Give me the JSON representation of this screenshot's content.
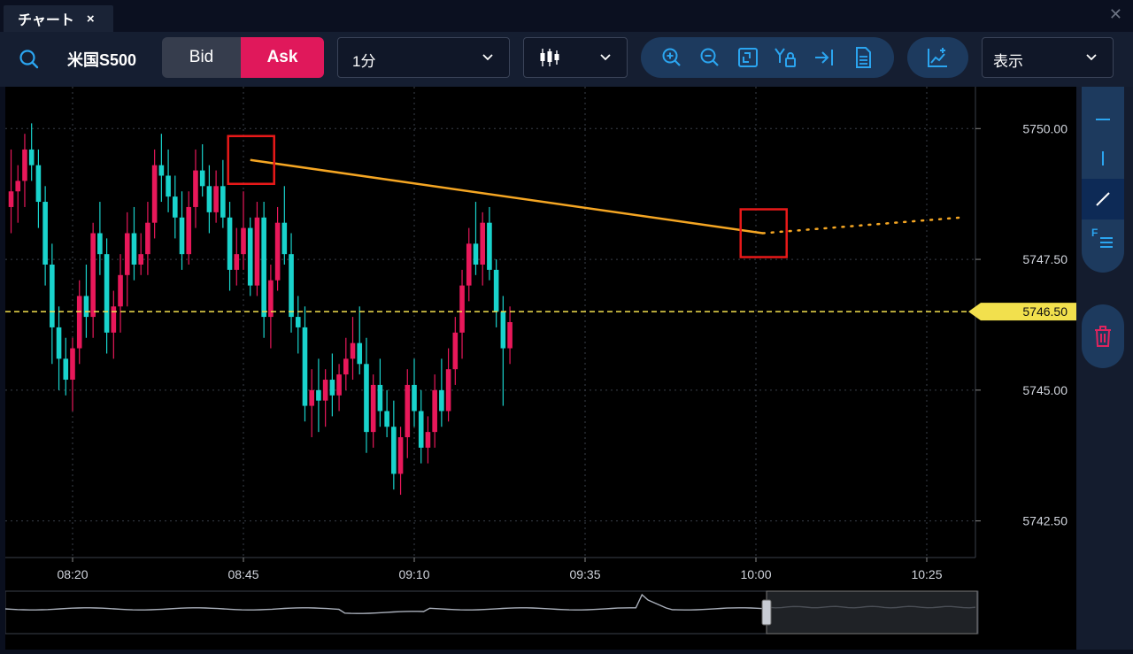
{
  "tab": {
    "title": "チャート",
    "close": "×"
  },
  "window": {
    "close": "✕"
  },
  "toolbar": {
    "symbol": "米国S500",
    "bid_label": "Bid",
    "ask_label": "Ask",
    "interval": "1分",
    "display_label": "表示",
    "icons": [
      "search-icon",
      "zoom-in-icon",
      "zoom-out-icon",
      "fit-icon",
      "lock-y-axis-icon",
      "scroll-to-end-icon",
      "document-icon",
      "add-indicator-icon",
      "chevron-down-icon"
    ]
  },
  "sidebar": {
    "tools": [
      "horizontal-line-icon",
      "vertical-line-icon",
      "trend-line-icon",
      "fibonacci-icon"
    ],
    "delete": "trash-icon"
  },
  "colors": {
    "up": "#e8185a",
    "down": "#19d3cc",
    "trendline": "#f5a623",
    "price_line": "#f2e04d",
    "highlight_box": "#e81919",
    "ask": "#e0185b",
    "accent_bg": "#1d3a5e"
  },
  "chart_data": {
    "type": "candlestick",
    "y_ticks": [
      "5750.00",
      "5747.50",
      "5745.00",
      "5742.50"
    ],
    "x_ticks": [
      "08:20",
      "08:45",
      "09:10",
      "09:35",
      "10:00",
      "10:25"
    ],
    "current_price": "5746.50",
    "ylim": [
      5741.8,
      5750.8
    ],
    "trendline": {
      "from": [
        "08:46",
        5749.4
      ],
      "to": [
        "10:01",
        5748.0
      ],
      "extended_to": [
        "10:30",
        5748.3
      ]
    },
    "highlights": [
      [
        "08:46",
        5749.4
      ],
      [
        "10:01",
        5748.0
      ]
    ],
    "candles_ohlc": [
      [
        5748.5,
        5749.6,
        5748.0,
        5748.8
      ],
      [
        5748.8,
        5749.3,
        5748.2,
        5749.0
      ],
      [
        5749.0,
        5749.9,
        5748.5,
        5749.6
      ],
      [
        5749.6,
        5750.1,
        5749.0,
        5749.3
      ],
      [
        5749.3,
        5749.6,
        5748.1,
        5748.6
      ],
      [
        5748.6,
        5748.9,
        5747.0,
        5747.4
      ],
      [
        5747.4,
        5747.8,
        5745.5,
        5746.2
      ],
      [
        5746.2,
        5746.6,
        5745.0,
        5745.6
      ],
      [
        5745.6,
        5746.0,
        5744.9,
        5745.2
      ],
      [
        5745.2,
        5746.0,
        5744.6,
        5745.8
      ],
      [
        5745.8,
        5747.1,
        5745.5,
        5746.8
      ],
      [
        5746.8,
        5747.4,
        5746.0,
        5746.4
      ],
      [
        5746.4,
        5748.2,
        5746.0,
        5748.0
      ],
      [
        5748.0,
        5748.6,
        5747.2,
        5747.6
      ],
      [
        5747.6,
        5747.9,
        5745.7,
        5746.1
      ],
      [
        5746.1,
        5746.9,
        5745.6,
        5746.6
      ],
      [
        5746.6,
        5747.6,
        5746.1,
        5747.2
      ],
      [
        5747.2,
        5748.4,
        5746.6,
        5748.0
      ],
      [
        5748.0,
        5748.5,
        5747.1,
        5747.4
      ],
      [
        5747.4,
        5748.0,
        5747.2,
        5747.6
      ],
      [
        5747.6,
        5748.6,
        5747.2,
        5748.2
      ],
      [
        5748.2,
        5749.6,
        5747.9,
        5749.3
      ],
      [
        5749.3,
        5749.9,
        5748.6,
        5749.1
      ],
      [
        5749.1,
        5749.6,
        5748.4,
        5748.7
      ],
      [
        5748.7,
        5749.1,
        5747.9,
        5748.3
      ],
      [
        5748.3,
        5748.8,
        5747.3,
        5747.6
      ],
      [
        5747.6,
        5748.8,
        5747.4,
        5748.5
      ],
      [
        5748.5,
        5749.6,
        5748.1,
        5749.2
      ],
      [
        5749.2,
        5749.7,
        5748.7,
        5748.9
      ],
      [
        5748.9,
        5749.3,
        5748.0,
        5748.4
      ],
      [
        5748.4,
        5749.2,
        5748.2,
        5748.9
      ],
      [
        5748.9,
        5749.4,
        5748.1,
        5748.3
      ],
      [
        5748.3,
        5748.6,
        5746.9,
        5747.3
      ],
      [
        5747.3,
        5748.1,
        5747.0,
        5747.6
      ],
      [
        5747.6,
        5748.8,
        5747.3,
        5748.1
      ],
      [
        5748.1,
        5748.3,
        5746.8,
        5747.0
      ],
      [
        5747.0,
        5748.6,
        5746.8,
        5748.3
      ],
      [
        5748.3,
        5748.6,
        5746.0,
        5746.4
      ],
      [
        5746.4,
        5747.4,
        5745.8,
        5747.1
      ],
      [
        5747.1,
        5748.5,
        5746.9,
        5748.2
      ],
      [
        5748.2,
        5748.9,
        5747.4,
        5747.6
      ],
      [
        5747.6,
        5748.0,
        5746.1,
        5746.4
      ],
      [
        5746.4,
        5746.8,
        5745.7,
        5746.2
      ],
      [
        5746.2,
        5746.6,
        5744.4,
        5744.7
      ],
      [
        5744.7,
        5745.4,
        5744.1,
        5745.0
      ],
      [
        5745.0,
        5745.6,
        5744.2,
        5744.8
      ],
      [
        5744.8,
        5745.4,
        5744.3,
        5745.2
      ],
      [
        5745.2,
        5745.7,
        5744.5,
        5744.9
      ],
      [
        5744.9,
        5745.5,
        5744.6,
        5745.3
      ],
      [
        5745.3,
        5746.0,
        5745.0,
        5745.6
      ],
      [
        5745.6,
        5746.4,
        5745.2,
        5745.9
      ],
      [
        5745.9,
        5746.6,
        5745.3,
        5745.5
      ],
      [
        5745.5,
        5746.0,
        5743.8,
        5744.2
      ],
      [
        5744.2,
        5745.3,
        5743.9,
        5745.1
      ],
      [
        5745.1,
        5745.6,
        5744.3,
        5744.6
      ],
      [
        5744.6,
        5745.0,
        5744.1,
        5744.3
      ],
      [
        5744.3,
        5744.8,
        5743.1,
        5743.4
      ],
      [
        5743.4,
        5744.3,
        5743.0,
        5744.1
      ],
      [
        5744.1,
        5745.4,
        5743.7,
        5745.1
      ],
      [
        5745.1,
        5745.6,
        5744.3,
        5744.6
      ],
      [
        5744.6,
        5745.0,
        5743.6,
        5743.9
      ],
      [
        5743.9,
        5744.5,
        5743.6,
        5744.2
      ],
      [
        5744.2,
        5745.3,
        5743.9,
        5745.0
      ],
      [
        5745.0,
        5745.6,
        5744.3,
        5744.6
      ],
      [
        5744.6,
        5745.8,
        5744.4,
        5745.4
      ],
      [
        5745.4,
        5746.4,
        5745.1,
        5746.1
      ],
      [
        5746.1,
        5747.3,
        5745.6,
        5747.0
      ],
      [
        5747.0,
        5748.1,
        5746.7,
        5747.8
      ],
      [
        5747.8,
        5748.6,
        5747.2,
        5747.4
      ],
      [
        5747.4,
        5748.4,
        5747.0,
        5748.2
      ],
      [
        5748.2,
        5748.5,
        5747.1,
        5747.3
      ],
      [
        5747.3,
        5747.5,
        5746.2,
        5746.5
      ],
      [
        5746.5,
        5746.8,
        5744.7,
        5745.8
      ],
      [
        5745.8,
        5746.6,
        5745.5,
        5746.3
      ]
    ]
  },
  "navigator": {
    "handle": "range-handle"
  }
}
